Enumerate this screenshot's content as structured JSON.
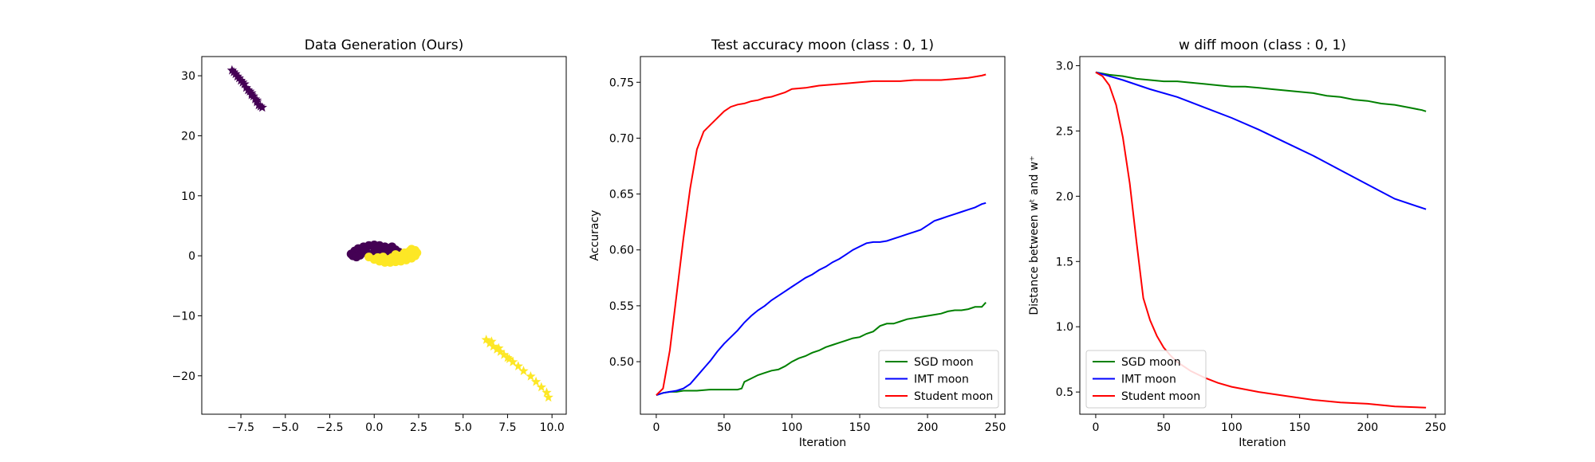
{
  "chart_data": [
    {
      "type": "scatter",
      "title": "Data Generation (Ours)",
      "xlabel": "",
      "ylabel": "",
      "xlim": [
        -9.7,
        10.8
      ],
      "ylim": [
        -26.4,
        33.2
      ],
      "xticks": [
        -7.5,
        -5.0,
        -2.5,
        0.0,
        2.5,
        5.0,
        7.5,
        10.0
      ],
      "yticks": [
        -20,
        -10,
        0,
        10,
        20,
        30
      ],
      "xtick_labels": [
        "−7.5",
        "−5.0",
        "−2.5",
        "0.0",
        "2.5",
        "5.0",
        "7.5",
        "10.0"
      ],
      "ytick_labels": [
        "−20",
        "−10",
        "0",
        "10",
        "20",
        "30"
      ],
      "grid": false,
      "groups": [
        {
          "color": "#440154",
          "marker": "star",
          "points": [
            [
              -8.0,
              30.9
            ],
            [
              -7.8,
              30.3
            ],
            [
              -7.6,
              29.6
            ],
            [
              -7.5,
              29.2
            ],
            [
              -7.3,
              28.6
            ],
            [
              -7.2,
              28.0
            ],
            [
              -7.1,
              27.6
            ],
            [
              -6.9,
              27.1
            ],
            [
              -6.8,
              26.6
            ],
            [
              -6.7,
              26.1
            ],
            [
              -6.6,
              25.6
            ],
            [
              -6.5,
              25.1
            ],
            [
              -6.3,
              24.7
            ],
            [
              -7.9,
              30.6
            ],
            [
              -7.4,
              28.9
            ],
            [
              -7.0,
              27.4
            ],
            [
              -6.6,
              25.9
            ],
            [
              -6.4,
              24.9
            ],
            [
              -7.7,
              29.9
            ],
            [
              -6.9,
              26.8
            ]
          ]
        },
        {
          "color": "#440154",
          "marker": "circle",
          "points": [
            [
              -1.3,
              0.3
            ],
            [
              -1.1,
              0.8
            ],
            [
              -0.9,
              1.2
            ],
            [
              -0.6,
              1.5
            ],
            [
              -0.3,
              1.7
            ],
            [
              0.0,
              1.8
            ],
            [
              0.3,
              1.7
            ],
            [
              0.6,
              1.5
            ],
            [
              0.9,
              1.3
            ],
            [
              1.2,
              1.0
            ],
            [
              1.4,
              0.6
            ],
            [
              -1.2,
              0.0
            ],
            [
              -0.8,
              0.1
            ],
            [
              -0.4,
              0.4
            ],
            [
              0.0,
              0.6
            ],
            [
              0.4,
              0.5
            ],
            [
              0.8,
              0.4
            ],
            [
              1.1,
              0.2
            ],
            [
              -1.0,
              -0.2
            ],
            [
              -0.5,
              0.9
            ],
            [
              0.2,
              1.2
            ],
            [
              0.7,
              0.9
            ],
            [
              -0.2,
              0.2
            ],
            [
              1.0,
              1.5
            ]
          ]
        },
        {
          "color": "#fde725",
          "marker": "circle",
          "points": [
            [
              -0.3,
              -0.2
            ],
            [
              0.0,
              -0.6
            ],
            [
              0.3,
              -0.9
            ],
            [
              0.6,
              -1.1
            ],
            [
              0.9,
              -1.1
            ],
            [
              1.2,
              -1.0
            ],
            [
              1.5,
              -0.9
            ],
            [
              1.8,
              -0.7
            ],
            [
              2.1,
              -0.4
            ],
            [
              2.3,
              0.0
            ],
            [
              2.4,
              0.5
            ],
            [
              2.3,
              0.9
            ],
            [
              2.1,
              1.1
            ],
            [
              0.5,
              -0.2
            ],
            [
              1.0,
              -0.3
            ],
            [
              1.5,
              0.0
            ],
            [
              1.9,
              0.3
            ],
            [
              2.0,
              0.8
            ],
            [
              1.7,
              0.5
            ],
            [
              1.2,
              0.2
            ],
            [
              0.2,
              -0.3
            ],
            [
              0.8,
              -0.6
            ],
            [
              1.6,
              -0.4
            ]
          ]
        },
        {
          "color": "#fde725",
          "marker": "star",
          "points": [
            [
              6.3,
              -14.0
            ],
            [
              6.5,
              -14.6
            ],
            [
              6.7,
              -15.1
            ],
            [
              6.9,
              -15.6
            ],
            [
              7.1,
              -16.0
            ],
            [
              7.3,
              -16.5
            ],
            [
              7.5,
              -17.0
            ],
            [
              7.8,
              -17.7
            ],
            [
              8.1,
              -18.4
            ],
            [
              8.4,
              -19.2
            ],
            [
              8.8,
              -20.1
            ],
            [
              9.1,
              -21.0
            ],
            [
              9.4,
              -21.9
            ],
            [
              9.7,
              -22.8
            ],
            [
              9.8,
              -23.6
            ],
            [
              6.6,
              -14.3
            ],
            [
              7.0,
              -15.4
            ],
            [
              7.6,
              -17.2
            ]
          ]
        }
      ]
    },
    {
      "type": "line",
      "title": "Test accuracy moon (class : 0, 1)",
      "xlabel": "Iteration",
      "ylabel": "Accuracy",
      "xlim": [
        -11.7,
        257
      ],
      "ylim": [
        0.453,
        0.773
      ],
      "xticks": [
        0,
        50,
        100,
        150,
        200,
        250
      ],
      "yticks": [
        0.5,
        0.55,
        0.6,
        0.65,
        0.7,
        0.75
      ],
      "xtick_labels": [
        "0",
        "50",
        "100",
        "150",
        "200",
        "250"
      ],
      "ytick_labels": [
        "0.50",
        "0.55",
        "0.60",
        "0.65",
        "0.70",
        "0.75"
      ],
      "grid": false,
      "legend_position": "lower-right",
      "series": [
        {
          "name": "SGD moon",
          "color": "#008000",
          "x": [
            0,
            5,
            10,
            15,
            20,
            30,
            40,
            50,
            55,
            60,
            63,
            65,
            70,
            75,
            80,
            85,
            90,
            95,
            100,
            105,
            110,
            115,
            120,
            125,
            130,
            135,
            140,
            145,
            150,
            155,
            160,
            165,
            170,
            175,
            180,
            185,
            190,
            195,
            200,
            205,
            210,
            215,
            220,
            225,
            230,
            235,
            240,
            243
          ],
          "y": [
            0.47,
            0.472,
            0.473,
            0.473,
            0.474,
            0.474,
            0.475,
            0.475,
            0.475,
            0.475,
            0.476,
            0.482,
            0.485,
            0.488,
            0.49,
            0.492,
            0.493,
            0.496,
            0.5,
            0.503,
            0.505,
            0.508,
            0.51,
            0.513,
            0.515,
            0.517,
            0.519,
            0.521,
            0.522,
            0.525,
            0.527,
            0.532,
            0.534,
            0.534,
            0.536,
            0.538,
            0.539,
            0.54,
            0.541,
            0.542,
            0.543,
            0.545,
            0.546,
            0.546,
            0.547,
            0.549,
            0.549,
            0.553
          ]
        },
        {
          "name": "IMT moon",
          "color": "#0000ff",
          "x": [
            0,
            5,
            10,
            15,
            20,
            25,
            30,
            35,
            40,
            45,
            50,
            55,
            60,
            65,
            70,
            75,
            80,
            85,
            90,
            95,
            100,
            105,
            110,
            115,
            120,
            125,
            130,
            135,
            140,
            145,
            150,
            155,
            160,
            165,
            170,
            175,
            180,
            185,
            190,
            195,
            200,
            205,
            210,
            215,
            220,
            225,
            230,
            235,
            240,
            243
          ],
          "y": [
            0.47,
            0.472,
            0.473,
            0.474,
            0.476,
            0.48,
            0.487,
            0.494,
            0.501,
            0.509,
            0.516,
            0.522,
            0.528,
            0.535,
            0.541,
            0.546,
            0.55,
            0.555,
            0.559,
            0.563,
            0.567,
            0.571,
            0.575,
            0.578,
            0.582,
            0.585,
            0.589,
            0.592,
            0.596,
            0.6,
            0.603,
            0.606,
            0.607,
            0.607,
            0.608,
            0.61,
            0.612,
            0.614,
            0.616,
            0.618,
            0.622,
            0.626,
            0.628,
            0.63,
            0.632,
            0.634,
            0.636,
            0.638,
            0.641,
            0.642
          ]
        },
        {
          "name": "Student moon",
          "color": "#ff0000",
          "x": [
            0,
            5,
            10,
            15,
            20,
            25,
            30,
            35,
            40,
            45,
            50,
            55,
            60,
            65,
            70,
            75,
            80,
            85,
            90,
            95,
            100,
            110,
            120,
            130,
            140,
            150,
            160,
            170,
            180,
            190,
            200,
            210,
            220,
            230,
            240,
            243
          ],
          "y": [
            0.47,
            0.476,
            0.51,
            0.56,
            0.61,
            0.655,
            0.69,
            0.706,
            0.712,
            0.718,
            0.724,
            0.728,
            0.73,
            0.731,
            0.733,
            0.734,
            0.736,
            0.737,
            0.739,
            0.741,
            0.744,
            0.745,
            0.747,
            0.748,
            0.749,
            0.75,
            0.751,
            0.751,
            0.751,
            0.752,
            0.752,
            0.752,
            0.753,
            0.754,
            0.756,
            0.757
          ]
        }
      ]
    },
    {
      "type": "line",
      "title": "w diff moon (class : 0, 1)",
      "xlabel": "Iteration",
      "ylabel": "Distance between wᵗ and w⁺",
      "xlim": [
        -11.7,
        257
      ],
      "ylim": [
        0.33,
        3.07
      ],
      "xticks": [
        0,
        50,
        100,
        150,
        200,
        250
      ],
      "yticks": [
        0.5,
        1.0,
        1.5,
        2.0,
        2.5,
        3.0
      ],
      "xtick_labels": [
        "0",
        "50",
        "100",
        "150",
        "200",
        "250"
      ],
      "ytick_labels": [
        "0.5",
        "1.0",
        "1.5",
        "2.0",
        "2.5",
        "3.0"
      ],
      "grid": false,
      "legend_position": "lower-left",
      "series": [
        {
          "name": "SGD moon",
          "color": "#008000",
          "x": [
            0,
            10,
            20,
            30,
            40,
            50,
            60,
            70,
            80,
            90,
            100,
            110,
            120,
            130,
            140,
            150,
            160,
            170,
            180,
            190,
            200,
            210,
            220,
            230,
            240,
            243
          ],
          "y": [
            2.95,
            2.93,
            2.92,
            2.9,
            2.89,
            2.88,
            2.88,
            2.87,
            2.86,
            2.85,
            2.84,
            2.84,
            2.83,
            2.82,
            2.81,
            2.8,
            2.79,
            2.77,
            2.76,
            2.74,
            2.73,
            2.71,
            2.7,
            2.68,
            2.66,
            2.65
          ]
        },
        {
          "name": "IMT moon",
          "color": "#0000ff",
          "x": [
            0,
            20,
            40,
            60,
            80,
            100,
            120,
            140,
            160,
            180,
            200,
            220,
            243
          ],
          "y": [
            2.95,
            2.89,
            2.82,
            2.76,
            2.68,
            2.6,
            2.51,
            2.41,
            2.31,
            2.2,
            2.09,
            1.98,
            1.9
          ]
        },
        {
          "name": "Student moon",
          "color": "#ff0000",
          "x": [
            0,
            5,
            10,
            15,
            20,
            25,
            30,
            35,
            40,
            45,
            50,
            55,
            60,
            70,
            80,
            90,
            100,
            120,
            140,
            160,
            180,
            200,
            220,
            243
          ],
          "y": [
            2.95,
            2.92,
            2.85,
            2.7,
            2.45,
            2.1,
            1.65,
            1.22,
            1.05,
            0.93,
            0.84,
            0.78,
            0.73,
            0.66,
            0.61,
            0.57,
            0.54,
            0.5,
            0.47,
            0.44,
            0.42,
            0.41,
            0.39,
            0.38
          ]
        }
      ]
    }
  ]
}
